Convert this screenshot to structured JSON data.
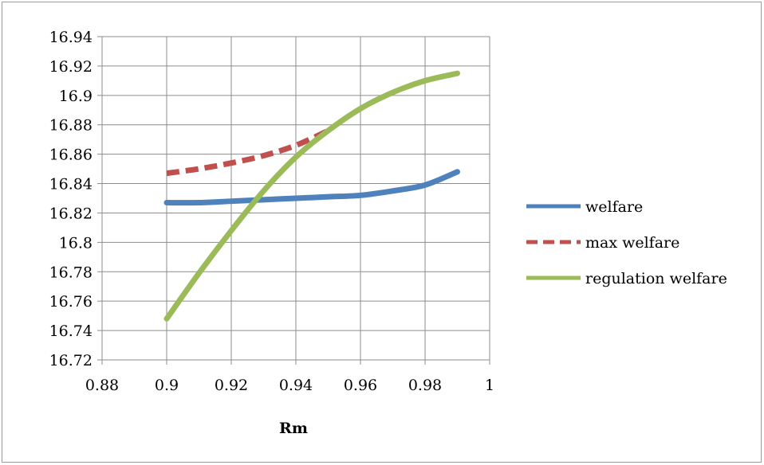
{
  "chart_data": {
    "type": "line",
    "title": "",
    "xlabel": "Rm",
    "ylabel": "",
    "xlim": [
      0.88,
      1.0
    ],
    "ylim": [
      16.72,
      16.94
    ],
    "x_ticks": [
      "0.88",
      "0.9",
      "0.92",
      "0.94",
      "0.96",
      "0.98",
      "1"
    ],
    "y_ticks": [
      "16.72",
      "16.74",
      "16.76",
      "16.78",
      "16.8",
      "16.82",
      "16.84",
      "16.86",
      "16.88",
      "16.9",
      "16.92",
      "16.94"
    ],
    "x_tick_values": [
      0.88,
      0.9,
      0.92,
      0.94,
      0.96,
      0.98,
      1.0
    ],
    "y_tick_values": [
      16.72,
      16.74,
      16.76,
      16.78,
      16.8,
      16.82,
      16.84,
      16.86,
      16.88,
      16.9,
      16.92,
      16.94
    ],
    "grid": true,
    "legend_position": "right",
    "series": [
      {
        "name": "welfare",
        "color": "#4f81bd",
        "dashed": false,
        "x": [
          0.9,
          0.91,
          0.92,
          0.93,
          0.94,
          0.95,
          0.96,
          0.97,
          0.98,
          0.99
        ],
        "y": [
          16.827,
          16.827,
          16.828,
          16.829,
          16.83,
          16.831,
          16.832,
          16.835,
          16.839,
          16.848
        ]
      },
      {
        "name": "max welfare",
        "color": "#c0504d",
        "dashed": true,
        "x": [
          0.9,
          0.91,
          0.92,
          0.93,
          0.94,
          0.95
        ],
        "y": [
          16.847,
          16.85,
          16.854,
          16.859,
          16.866,
          16.876
        ]
      },
      {
        "name": "regulation welfare",
        "color": "#9bbb59",
        "dashed": false,
        "x": [
          0.9,
          0.91,
          0.92,
          0.93,
          0.94,
          0.95,
          0.96,
          0.97,
          0.98,
          0.99
        ],
        "y": [
          16.748,
          16.779,
          16.808,
          16.835,
          16.858,
          16.876,
          16.891,
          16.902,
          16.91,
          16.915
        ]
      }
    ]
  }
}
